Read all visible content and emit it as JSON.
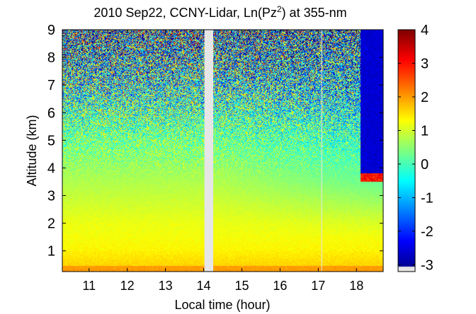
{
  "chart_data": {
    "type": "heatmap",
    "title_main": "2010 Sep22, CCNY-Lidar, Ln(Pz",
    "title_sup": "2",
    "title_end": ") at 355-nm",
    "xlabel": "Local time (hour)",
    "ylabel": "Altitude (km)",
    "xlim": [
      10.3,
      18.7
    ],
    "ylim": [
      0.25,
      9.0
    ],
    "x_ticks": [
      11,
      12,
      13,
      14,
      15,
      16,
      17,
      18
    ],
    "y_ticks": [
      1,
      2,
      3,
      4,
      5,
      6,
      7,
      8,
      9
    ],
    "colorbar": {
      "min": -3.2,
      "max": 4,
      "ticks": [
        -3,
        -2,
        -1,
        0,
        1,
        2,
        3,
        4
      ],
      "colormap": "jet"
    },
    "data_gaps": [
      {
        "x_start": 14.02,
        "x_end": 14.25
      },
      {
        "x_start": 17.08,
        "x_end": 17.1
      }
    ],
    "colors": {
      "gap": "#e6e6e6",
      "colorbar_low_block": "#e6e6e6"
    }
  }
}
